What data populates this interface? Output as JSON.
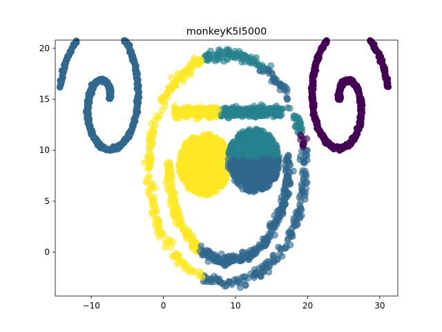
{
  "chart_data": {
    "type": "scatter",
    "title": "monkeyK5I5000",
    "xlabel": "",
    "ylabel": "",
    "xlim": [
      -15,
      32.5
    ],
    "ylim": [
      -4.3,
      20.8
    ],
    "x_ticks": [
      -10,
      0,
      10,
      20,
      30
    ],
    "y_ticks": [
      0,
      5,
      10,
      15,
      20
    ],
    "grid": false,
    "legend": "none",
    "colors": {
      "purple": "#440154",
      "blue": "#31688e",
      "teal": "#26828e",
      "green": "#35b779",
      "yellow": "#fde725"
    },
    "series": [
      {
        "color_key": "blue",
        "marker": "small-dense",
        "shape": "spiral",
        "description_points": [
          [
            -8.5,
            15.5
          ],
          [
            -9.0,
            14.0
          ],
          [
            -7.5,
            13.0
          ],
          [
            -6.0,
            14.5
          ],
          [
            -6.5,
            17.5
          ],
          [
            -8.0,
            19.5
          ],
          [
            -11.5,
            18.5
          ],
          [
            -13.5,
            15.0
          ],
          [
            -11.0,
            11.0
          ],
          [
            -7.0,
            9.8
          ],
          [
            -3.0,
            11.5
          ],
          [
            -1.5,
            15.3
          ]
        ],
        "x": [
          -8.5,
          -9.0,
          -7.5,
          -6.0,
          -6.5,
          -8.0,
          -11.5,
          -13.5,
          -11.0,
          -7.0,
          -3.0,
          -1.5
        ],
        "y": [
          15.5,
          14.0,
          13.0,
          14.5,
          17.5,
          19.5,
          18.5,
          15.0,
          11.0,
          9.8,
          11.5,
          15.3
        ]
      },
      {
        "color_key": "purple",
        "marker": "small-dense",
        "shape": "spiral",
        "x": [
          26.8,
          27.0,
          26.0,
          24.0,
          22.5,
          22.5,
          24.5,
          27.0,
          28.5,
          28.0,
          26.0,
          23.0,
          21.0,
          19.5,
          18.8
        ],
        "y": [
          14.0,
          15.5,
          16.5,
          16.0,
          14.0,
          11.5,
          10.2,
          10.5,
          13.0,
          16.5,
          19.5,
          19.8,
          18.5,
          16.5,
          14.5
        ]
      },
      {
        "color_key": "yellow",
        "marker": "large-alpha",
        "shape": "face-left",
        "x": [
          5.0,
          3.5,
          2.5,
          1.0,
          -0.5,
          -1.5,
          -2.2,
          -2.5,
          -2.5,
          -2.0,
          -1.0,
          0.0,
          1.0,
          2.5,
          4.0,
          5.5
        ],
        "y": [
          18.5,
          18.0,
          17.0,
          15.5,
          14.0,
          12.0,
          10.0,
          7.5,
          5.5,
          3.5,
          1.5,
          0.0,
          -1.5,
          -2.2,
          -2.6,
          -2.8
        ]
      },
      {
        "color_key": "blue",
        "marker": "large-alpha",
        "shape": "face-bottom",
        "x": [
          5.5,
          7.5,
          9.5,
          11.5,
          13.5,
          15.5,
          17.0,
          18.0,
          19.0,
          19.8,
          20.0
        ],
        "y": [
          -2.8,
          -3.0,
          -2.9,
          -2.5,
          -1.5,
          -0.3,
          1.2,
          3.0,
          5.0,
          7.0,
          9.0
        ]
      }
    ],
    "point_count": 5000
  }
}
